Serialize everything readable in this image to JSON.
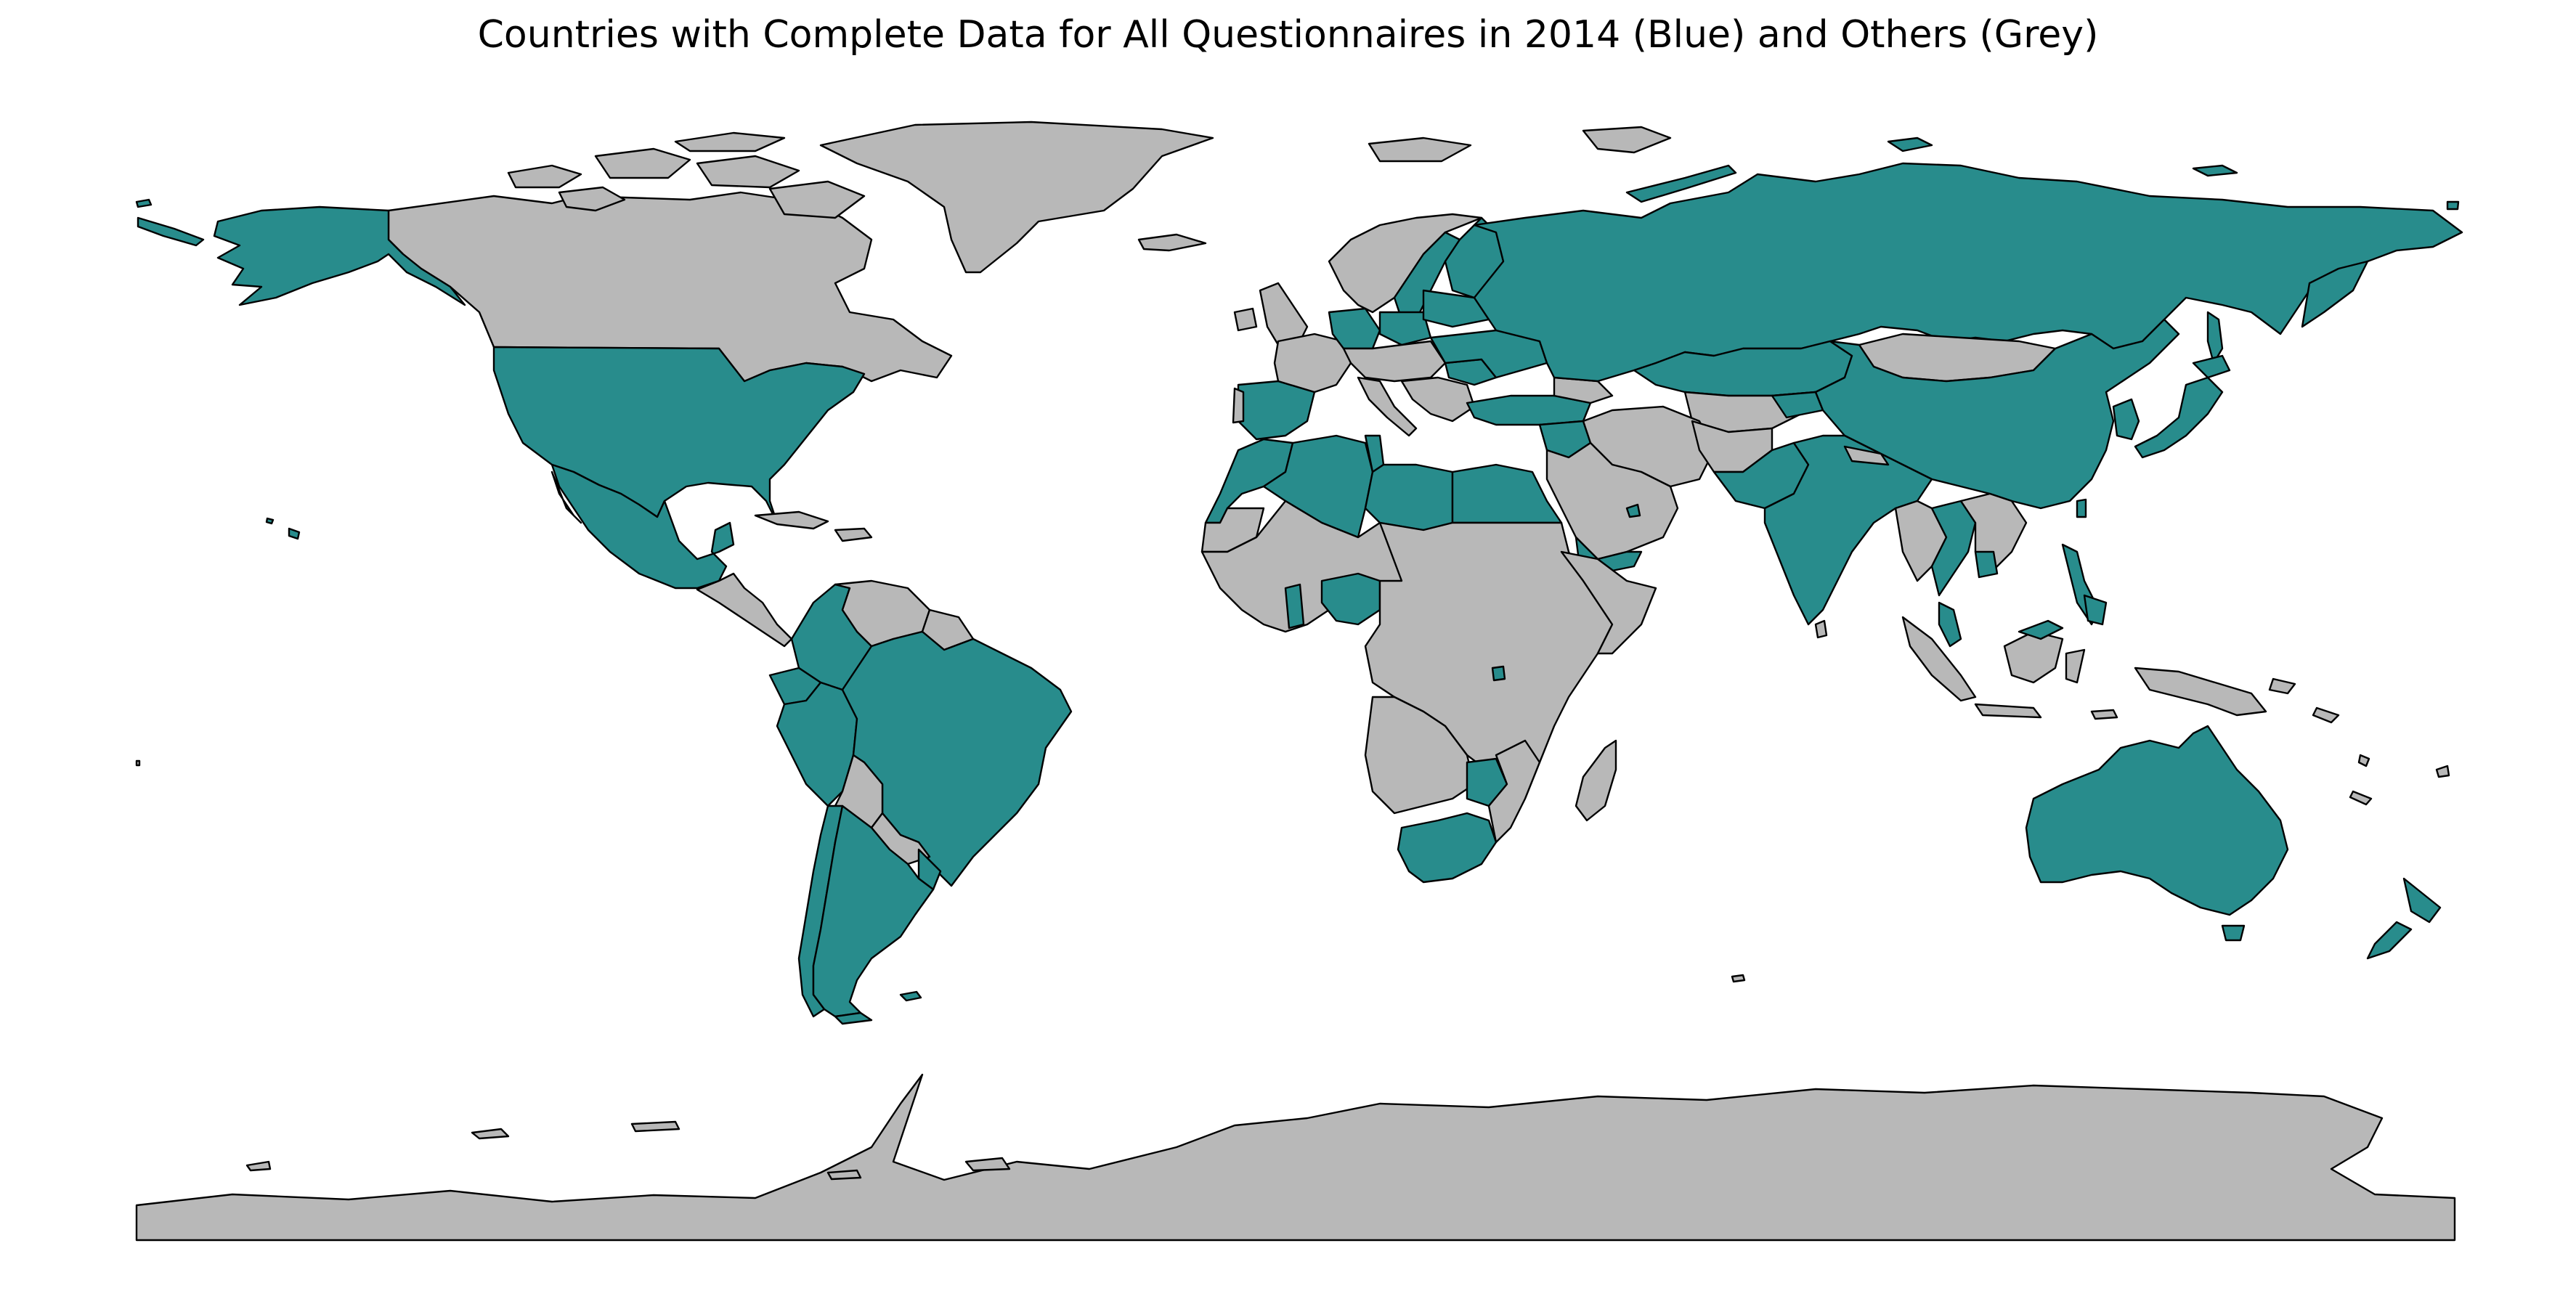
{
  "map": {
    "title": "Countries with Complete Data for All Questionnaires in 2014 (Blue) and Others (Grey)",
    "colors": {
      "complete": "#288c8c",
      "other": "#b8b8b8",
      "border": "#000000",
      "background": "#ffffff"
    }
  }
}
